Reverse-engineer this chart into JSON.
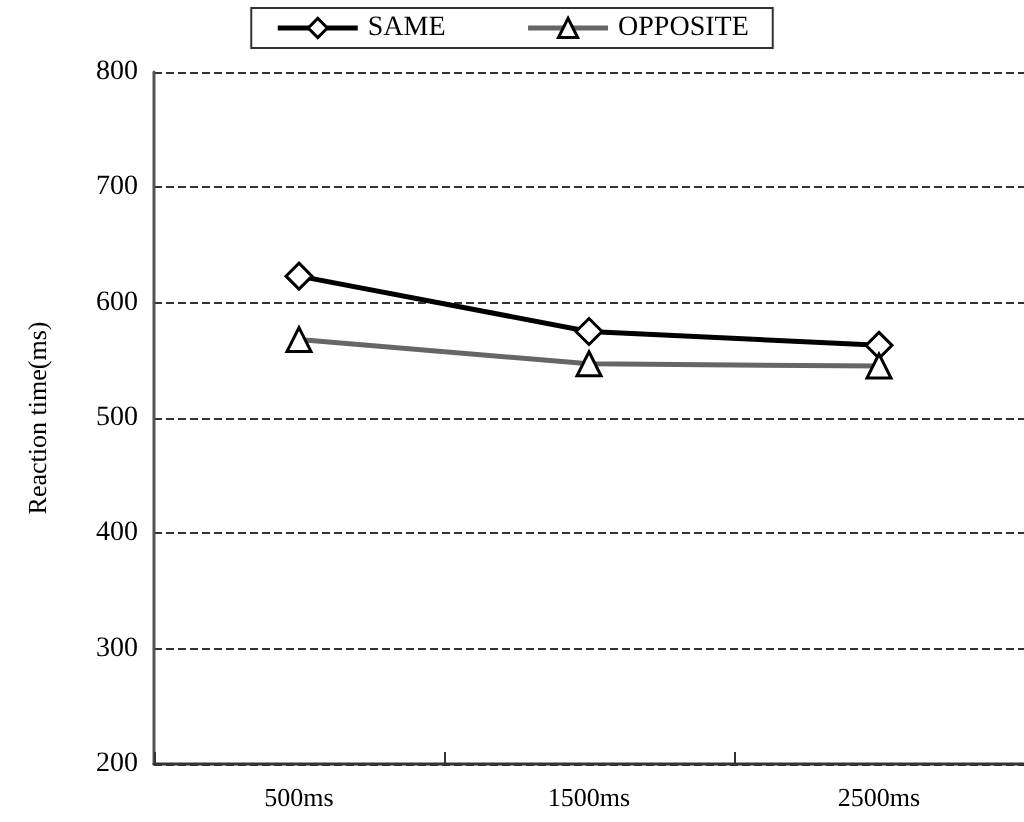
{
  "chart_data": {
    "type": "line",
    "categories": [
      "500ms",
      "1500ms",
      "2500ms"
    ],
    "ylabel": "Reaction time(ms)",
    "ylim": [
      200,
      800
    ],
    "yticks": [
      200,
      300,
      400,
      500,
      600,
      700,
      800
    ],
    "grid": "y",
    "legend": "top",
    "line_style": "solid",
    "series": [
      {
        "name": "SAME",
        "color": "#000000",
        "marker": "diamond",
        "values": [
          623,
          575,
          563
        ]
      },
      {
        "name": "OPPOSITE",
        "color": "#666666",
        "marker": "triangle",
        "values": [
          568,
          547,
          545
        ]
      }
    ]
  }
}
